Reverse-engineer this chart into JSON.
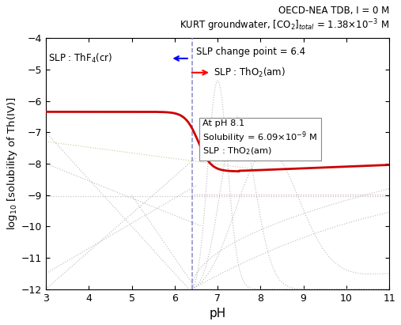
{
  "title_line1": "OECD-NEA TDB, I = 0 M",
  "title_line2": "KURT groundwater, [CO₂]ₜₒₜₐₗ = 1.38×10⁻³ M",
  "xlabel": "pH",
  "ylabel": "log$_{10}$ [solubility of Th(IV)]",
  "xlim": [
    3,
    11
  ],
  "ylim": [
    -12,
    -4
  ],
  "xticks": [
    3,
    4,
    5,
    6,
    7,
    8,
    9,
    10,
    11
  ],
  "yticks": [
    -12,
    -11,
    -10,
    -9,
    -8,
    -7,
    -6,
    -5,
    -4
  ],
  "vline_x": 6.4,
  "main_line_color": "#cc0000",
  "vline_color": "#8888cc",
  "gray_dotted": "#c0c0c0",
  "tan_dotted": "#d4c8a0",
  "pink_dotted": "#d0a8b8",
  "background_color": "#ffffff"
}
